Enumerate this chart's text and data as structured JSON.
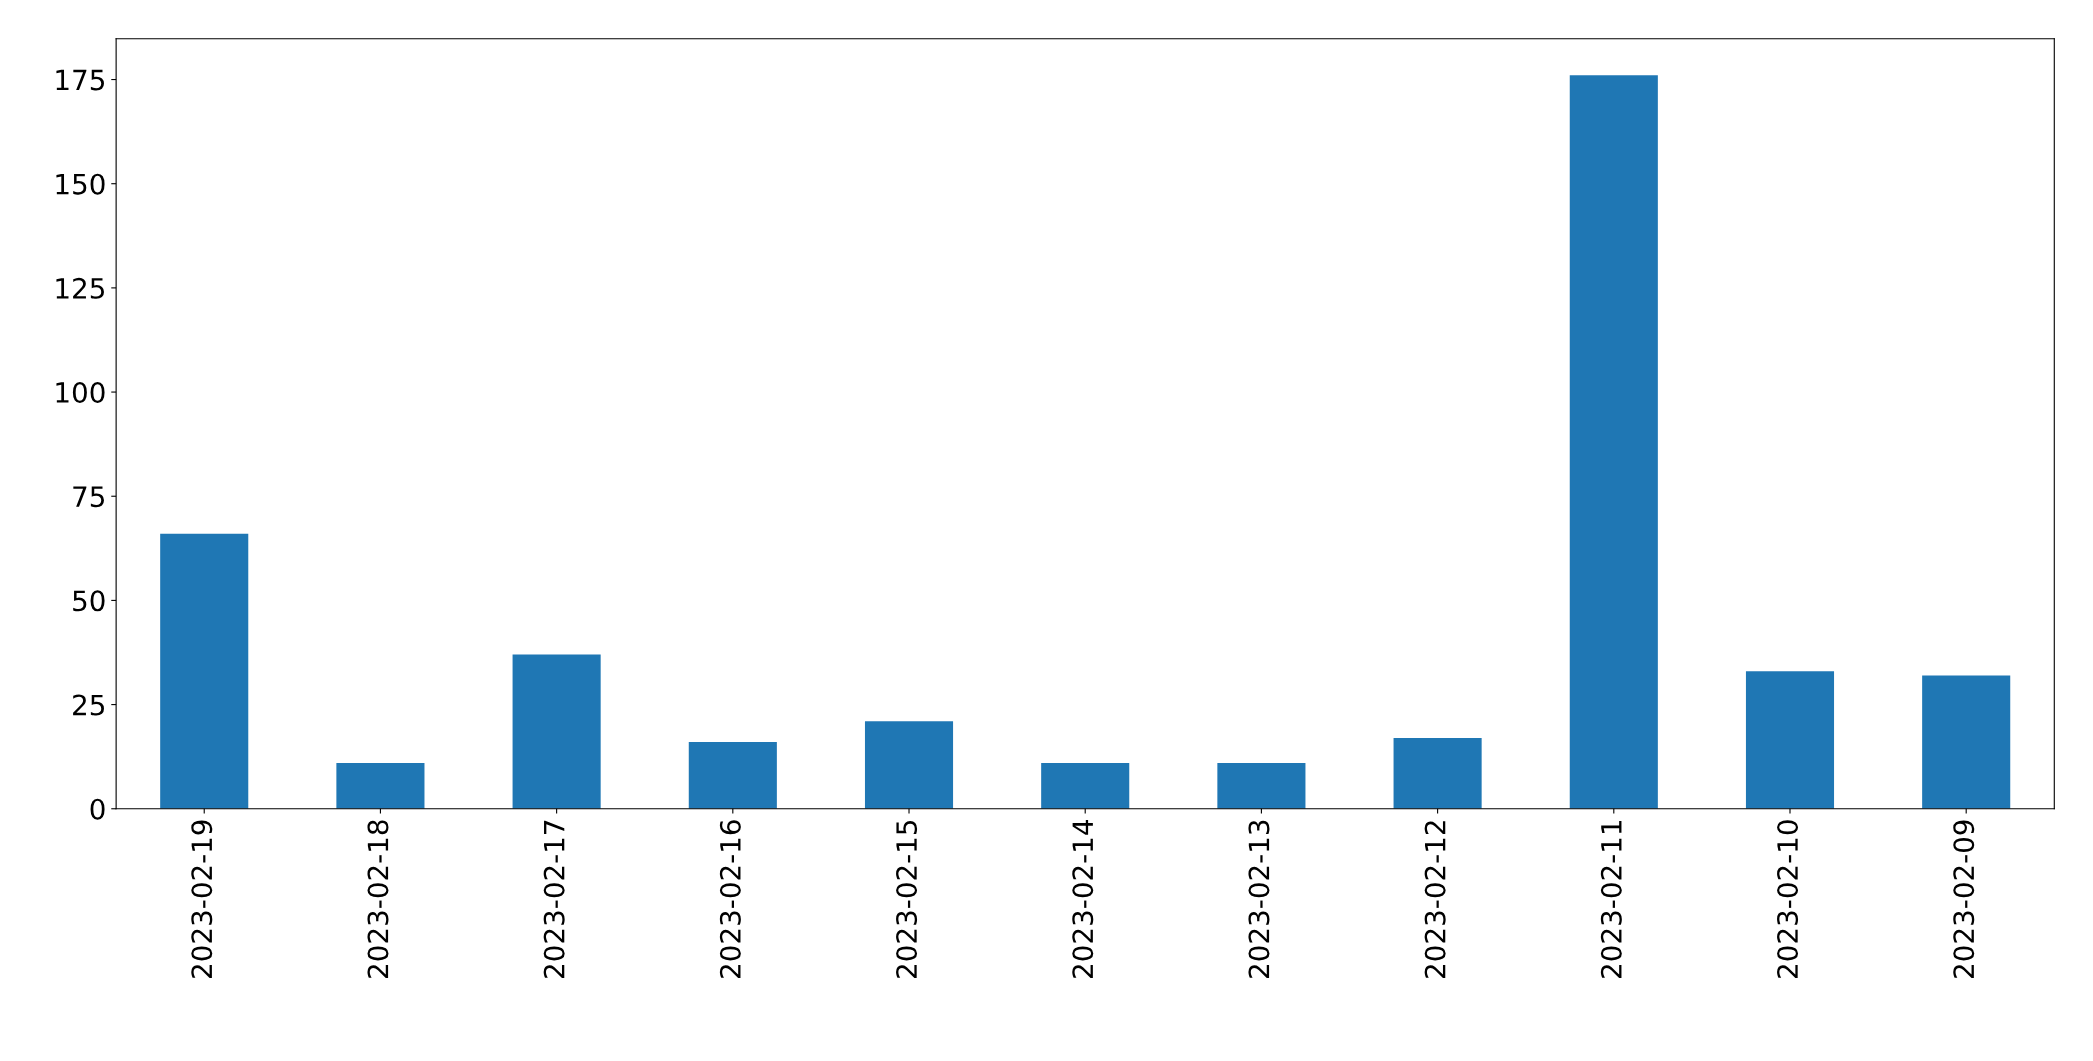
{
  "chart_data": {
    "type": "bar",
    "categories": [
      "2023-02-19",
      "2023-02-18",
      "2023-02-17",
      "2023-02-16",
      "2023-02-15",
      "2023-02-14",
      "2023-02-13",
      "2023-02-12",
      "2023-02-11",
      "2023-02-10",
      "2023-02-09"
    ],
    "values": [
      66,
      11,
      37,
      16,
      21,
      11,
      11,
      17,
      176,
      33,
      32
    ],
    "color": "#1f77b4",
    "ylim": [
      0,
      184.8
    ],
    "yticks": [
      0,
      25,
      50,
      75,
      100,
      125,
      150,
      175
    ],
    "grid": false,
    "legend": false
  }
}
